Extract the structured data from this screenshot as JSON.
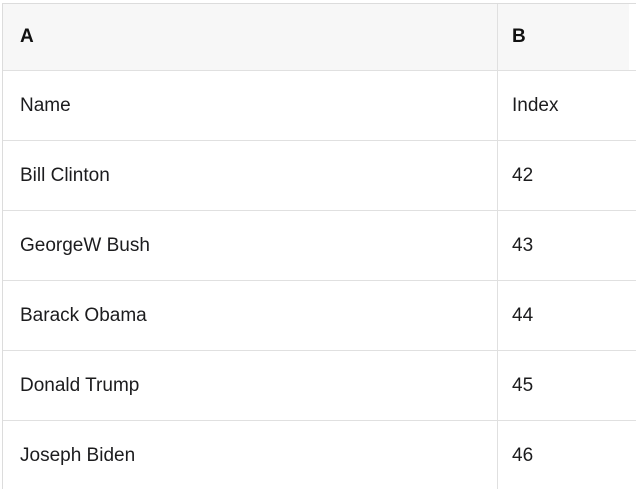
{
  "table": {
    "column_headers": {
      "a": "A",
      "b": "B"
    },
    "rows": [
      {
        "a": "Name",
        "b": "Index"
      },
      {
        "a": "Bill Clinton",
        "b": "42"
      },
      {
        "a": "GeorgeW Bush",
        "b": "43"
      },
      {
        "a": "Barack Obama",
        "b": "44"
      },
      {
        "a": "Donald Trump",
        "b": "45"
      },
      {
        "a": "Joseph Biden",
        "b": "46"
      }
    ],
    "colors": {
      "header_bg": "#f7f7f7",
      "grid_border": "#e0e0e0",
      "outer_border": "#dcdcdc",
      "text": "#1c1c1e"
    }
  }
}
